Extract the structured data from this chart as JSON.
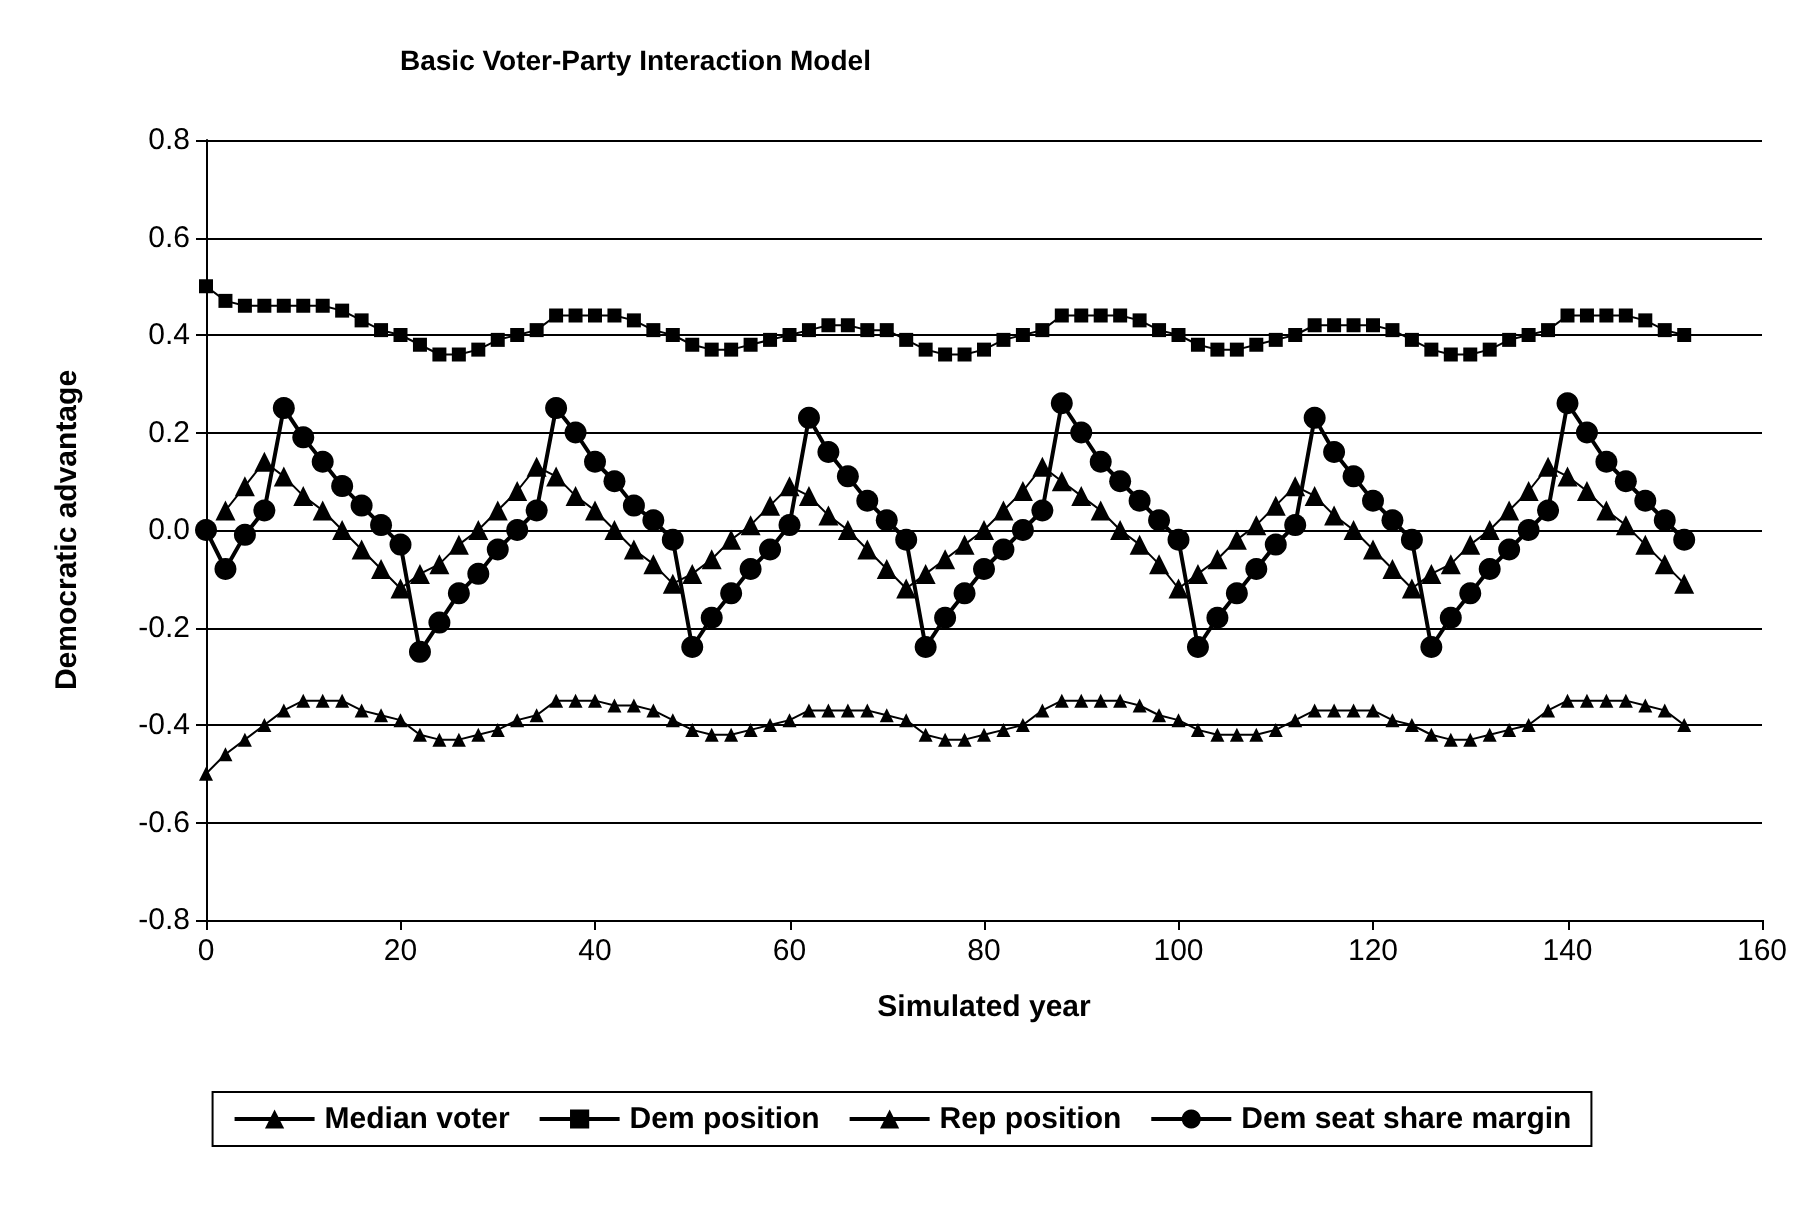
{
  "chart_data": {
    "type": "line",
    "title": "Basic Voter-Party Interaction Model",
    "xlabel": "Simulated year",
    "ylabel": "Democratic advantage",
    "x": [
      0,
      2,
      4,
      6,
      8,
      10,
      12,
      14,
      16,
      18,
      20,
      22,
      24,
      26,
      28,
      30,
      32,
      34,
      36,
      38,
      40,
      42,
      44,
      46,
      48,
      50,
      52,
      54,
      56,
      58,
      60,
      62,
      64,
      66,
      68,
      70,
      72,
      74,
      76,
      78,
      80,
      82,
      84,
      86,
      88,
      90,
      92,
      94,
      96,
      98,
      100,
      102,
      104,
      106,
      108,
      110,
      112,
      114,
      116,
      118,
      120,
      122,
      124,
      126,
      128,
      130,
      132,
      134,
      136,
      138,
      140,
      142,
      144,
      146,
      148,
      150,
      152
    ],
    "series": [
      {
        "name": "Median voter",
        "color": "#000000",
        "marker": "triangle",
        "values": [
          null,
          0.04,
          0.09,
          0.14,
          0.11,
          0.07,
          0.04,
          0,
          -0.04,
          -0.08,
          -0.12,
          -0.09,
          -0.07,
          -0.03,
          0,
          0.04,
          0.08,
          0.13,
          0.11,
          0.07,
          0.04,
          0,
          -0.04,
          -0.07,
          -0.11,
          -0.09,
          -0.06,
          -0.02,
          0.01,
          0.05,
          0.09,
          0.07,
          0.03,
          0,
          -0.04,
          -0.08,
          -0.12,
          -0.09,
          -0.06,
          -0.03,
          0,
          0.04,
          0.08,
          0.13,
          0.1,
          0.07,
          0.04,
          0,
          -0.03,
          -0.07,
          -0.12,
          -0.09,
          -0.06,
          -0.02,
          0.01,
          0.05,
          0.09,
          0.07,
          0.03,
          0,
          -0.04,
          -0.08,
          -0.12,
          -0.09,
          -0.07,
          -0.03,
          0,
          0.04,
          0.08,
          0.13,
          0.11,
          0.08,
          0.04,
          0.01,
          -0.03,
          -0.07,
          -0.11
        ]
      },
      {
        "name": "Dem position",
        "color": "#000000",
        "marker": "square",
        "values": [
          0.5,
          0.47,
          0.46,
          0.46,
          0.46,
          0.46,
          0.46,
          0.45,
          0.43,
          0.41,
          0.4,
          0.38,
          0.36,
          0.36,
          0.37,
          0.39,
          0.4,
          0.41,
          0.44,
          0.44,
          0.44,
          0.44,
          0.43,
          0.41,
          0.4,
          0.38,
          0.37,
          0.37,
          0.38,
          0.39,
          0.4,
          0.41,
          0.42,
          0.42,
          0.41,
          0.41,
          0.39,
          0.37,
          0.36,
          0.36,
          0.37,
          0.39,
          0.4,
          0.41,
          0.44,
          0.44,
          0.44,
          0.44,
          0.43,
          0.41,
          0.4,
          0.38,
          0.37,
          0.37,
          0.38,
          0.39,
          0.4,
          0.42,
          0.42,
          0.42,
          0.42,
          0.41,
          0.39,
          0.37,
          0.36,
          0.36,
          0.37,
          0.39,
          0.4,
          0.41,
          0.44,
          0.44,
          0.44,
          0.44,
          0.43,
          0.41,
          0.4
        ]
      },
      {
        "name": "Rep position",
        "color": "#000000",
        "marker": "triangle",
        "values": [
          -0.5,
          -0.46,
          -0.43,
          -0.4,
          -0.37,
          -0.35,
          -0.35,
          -0.35,
          -0.37,
          -0.38,
          -0.39,
          -0.42,
          -0.43,
          -0.43,
          -0.42,
          -0.41,
          -0.39,
          -0.38,
          -0.35,
          -0.35,
          -0.35,
          -0.36,
          -0.36,
          -0.37,
          -0.39,
          -0.41,
          -0.42,
          -0.42,
          -0.41,
          -0.4,
          -0.39,
          -0.37,
          -0.37,
          -0.37,
          -0.37,
          -0.38,
          -0.39,
          -0.42,
          -0.43,
          -0.43,
          -0.42,
          -0.41,
          -0.4,
          -0.37,
          -0.35,
          -0.35,
          -0.35,
          -0.35,
          -0.36,
          -0.38,
          -0.39,
          -0.41,
          -0.42,
          -0.42,
          -0.42,
          -0.41,
          -0.39,
          -0.37,
          -0.37,
          -0.37,
          -0.37,
          -0.39,
          -0.4,
          -0.42,
          -0.43,
          -0.43,
          -0.42,
          -0.41,
          -0.4,
          -0.37,
          -0.35,
          -0.35,
          -0.35,
          -0.35,
          -0.36,
          -0.37,
          -0.4
        ]
      },
      {
        "name": "Dem seat share margin",
        "color": "#000000",
        "marker": "circle",
        "values": [
          0,
          -0.08,
          -0.01,
          0.04,
          0.25,
          0.19,
          0.14,
          0.09,
          0.05,
          0.01,
          -0.03,
          -0.25,
          -0.19,
          -0.13,
          -0.09,
          -0.04,
          0,
          0.04,
          0.25,
          0.2,
          0.14,
          0.1,
          0.05,
          0.02,
          -0.02,
          -0.24,
          -0.18,
          -0.13,
          -0.08,
          -0.04,
          0.01,
          0.23,
          0.16,
          0.11,
          0.06,
          0.02,
          -0.02,
          -0.24,
          -0.18,
          -0.13,
          -0.08,
          -0.04,
          0,
          0.04,
          0.26,
          0.2,
          0.14,
          0.1,
          0.06,
          0.02,
          -0.02,
          -0.24,
          -0.18,
          -0.13,
          -0.08,
          -0.03,
          0.01,
          0.23,
          0.16,
          0.11,
          0.06,
          0.02,
          -0.02,
          -0.24,
          -0.18,
          -0.13,
          -0.08,
          -0.04,
          0,
          0.04,
          0.26,
          0.2,
          0.14,
          0.1,
          0.06,
          0.02,
          -0.02
        ]
      }
    ],
    "xlim": [
      0,
      160
    ],
    "xticks": [
      0,
      20,
      40,
      60,
      80,
      100,
      120,
      140,
      160
    ],
    "ylim": [
      -0.8,
      0.8
    ],
    "yticks": [
      -0.8,
      -0.6,
      -0.4,
      -0.2,
      {
        "value": 0,
        "label": "0.0"
      },
      0.2,
      0.4,
      0.6,
      0.8
    ],
    "grid": "y",
    "legend": "bottom"
  }
}
